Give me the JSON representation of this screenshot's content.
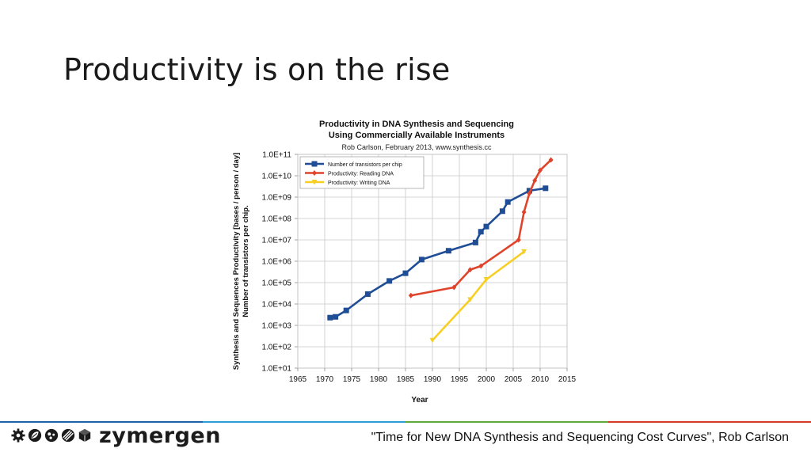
{
  "slide": {
    "title": "Productivity is on the rise",
    "citation": "\"Time for New DNA Synthesis and Sequencing Cost Curves\", Rob Carlson",
    "brand": "zymergen",
    "footer_colors": [
      "#1f62a8",
      "#2e9ad6",
      "#5aab3c",
      "#d43a2a"
    ]
  },
  "chart_data": {
    "type": "line",
    "title_lines": [
      "Productivity in DNA Synthesis and Sequencing",
      "Using Commercially Available Instruments"
    ],
    "subtitle": "Rob Carlson, February 2013, www.synthesis.cc",
    "xlabel": "Year",
    "ylabel_lines": [
      "Synthesis and Sequences Productivity [bases / person / day]",
      "Number of transistors per chip."
    ],
    "xlim": [
      1965,
      2015
    ],
    "xticks": [
      "1965",
      "1970",
      "1975",
      "1980",
      "1985",
      "1990",
      "1995",
      "2000",
      "2005",
      "2010",
      "2015"
    ],
    "yscale": "log",
    "ylim": [
      10,
      100000000000
    ],
    "yticks": [
      "1.0E+01",
      "1.0E+02",
      "1.0E+03",
      "1.0E+04",
      "1.0E+05",
      "1.0E+06",
      "1.0E+07",
      "1.0E+08",
      "1.0E+09",
      "1.0E+10",
      "1.0E+11"
    ],
    "grid": true,
    "legend_position": "top-left",
    "series": [
      {
        "name": "Number of transistors per chip",
        "color": "#1f4e96",
        "marker": "square",
        "points": [
          [
            1971,
            2300
          ],
          [
            1972,
            2500
          ],
          [
            1974,
            5000
          ],
          [
            1978,
            29000
          ],
          [
            1982,
            120000
          ],
          [
            1985,
            275000
          ],
          [
            1988,
            1200000
          ],
          [
            1993,
            3100000
          ],
          [
            1998,
            7500000
          ],
          [
            1999,
            24000000
          ],
          [
            2000,
            42000000
          ],
          [
            2003,
            220000000
          ],
          [
            2004,
            592000000
          ],
          [
            2008,
            2000000000
          ],
          [
            2011,
            2600000000
          ]
        ]
      },
      {
        "name": "Productivity: Reading DNA",
        "color": "#e0432b",
        "marker": "diamond",
        "points": [
          [
            1986,
            25000
          ],
          [
            1994,
            60000
          ],
          [
            1997,
            400000
          ],
          [
            1999,
            600000
          ],
          [
            2006,
            10000000
          ],
          [
            2007,
            200000000
          ],
          [
            2008,
            1500000000
          ],
          [
            2009,
            6000000000
          ],
          [
            2010,
            18000000000
          ],
          [
            2012,
            55000000000
          ]
        ]
      },
      {
        "name": "Productivity: Writing DNA",
        "color": "#f7cf24",
        "marker": "triangle-down",
        "points": [
          [
            1990,
            200
          ],
          [
            1997,
            16000
          ],
          [
            2000,
            140000
          ],
          [
            2007,
            2800000
          ]
        ]
      }
    ]
  }
}
